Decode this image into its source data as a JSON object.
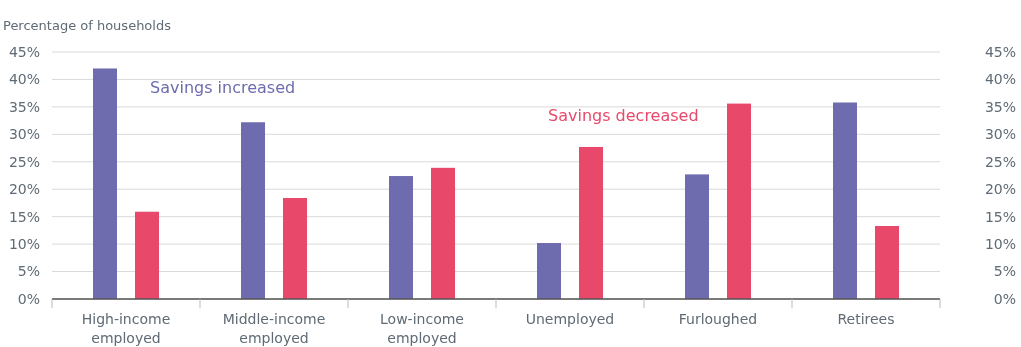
{
  "chart_data": {
    "type": "bar",
    "ylabel": "Percentage of households",
    "categories": [
      "High-income employed",
      "Middle-income employed",
      "Low-income employed",
      "Unemployed",
      "Furloughed",
      "Retirees"
    ],
    "series": [
      {
        "name": "Savings increased",
        "color": "#6e6bae",
        "values": [
          42.0,
          32.2,
          22.4,
          10.2,
          22.7,
          35.8
        ]
      },
      {
        "name": "Savings decreased",
        "color": "#e8496b",
        "values": [
          15.9,
          18.4,
          23.9,
          27.7,
          35.6,
          13.3
        ]
      }
    ],
    "ylim": [
      0,
      45
    ],
    "yticks": [
      {
        "value": 0,
        "label": "0%"
      },
      {
        "value": 5,
        "label": "5%"
      },
      {
        "value": 10,
        "label": "10%"
      },
      {
        "value": 15,
        "label": "15%"
      },
      {
        "value": 20,
        "label": "20%"
      },
      {
        "value": 25,
        "label": "25%"
      },
      {
        "value": 30,
        "label": "30%"
      },
      {
        "value": 35,
        "label": "35%"
      },
      {
        "value": 40,
        "label": "40%"
      },
      {
        "value": 45,
        "label": "45%"
      }
    ],
    "y2lim": [
      0,
      45
    ],
    "y2ticks": [
      {
        "value": 0,
        "label": "0%"
      },
      {
        "value": 5,
        "label": "5%"
      },
      {
        "value": 10,
        "label": "10%"
      },
      {
        "value": 15,
        "label": "15%"
      },
      {
        "value": 20,
        "label": "20%"
      },
      {
        "value": 25,
        "label": "25%"
      },
      {
        "value": 30,
        "label": "30%"
      },
      {
        "value": 35,
        "label": "35%"
      },
      {
        "value": 40,
        "label": "40%"
      },
      {
        "value": 45,
        "label": "45%"
      }
    ],
    "grid": "y",
    "legend": false
  }
}
